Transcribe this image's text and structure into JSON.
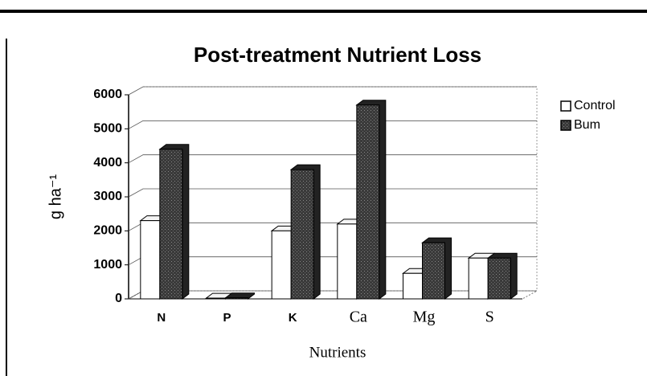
{
  "chart_data": {
    "type": "bar",
    "title": "Post-treatment Nutrient Loss",
    "x_label": "Nutrients",
    "y_label": "g ha⁻¹",
    "categories": [
      "N",
      "P",
      "K",
      "Ca",
      "Mg",
      "S"
    ],
    "series": [
      {
        "name": "Control",
        "color": "#ffffff",
        "values": [
          2300,
          20,
          2000,
          2200,
          750,
          1200
        ]
      },
      {
        "name": "Bum",
        "color": "#3a3a3a",
        "values": [
          4400,
          30,
          3800,
          5700,
          1650,
          1200
        ]
      }
    ],
    "ylim": [
      0,
      6000
    ],
    "yticks": [
      0,
      1000,
      2000,
      3000,
      4000,
      5000,
      6000
    ],
    "grid": true,
    "legend": "right"
  }
}
